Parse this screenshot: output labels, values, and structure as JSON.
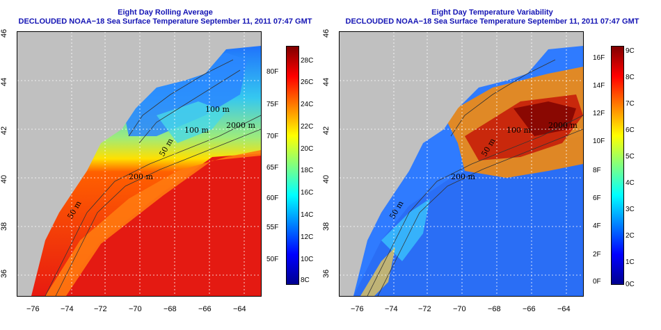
{
  "left_panel": {
    "title": "Eight Day Rolling Average",
    "subtitle": "DECLOUDED NOAA−18 Sea Surface Temperature September 11, 2011 07:47 GMT",
    "x_ticks": [
      "−76",
      "−74",
      "−72",
      "−70",
      "−68",
      "−66",
      "−64"
    ],
    "y_ticks": [
      "46",
      "44",
      "42",
      "40",
      "38",
      "36"
    ],
    "contour_labels": [
      "100 m",
      "100 m",
      "2000 m",
      "200 m",
      "50 m",
      "50 m"
    ],
    "colorbar_celsius": [
      "28C",
      "26C",
      "24C",
      "22C",
      "20C",
      "18C",
      "16C",
      "14C",
      "12C",
      "10C",
      "8C"
    ],
    "colorbar_fahrenheit": [
      "80F",
      "75F",
      "70F",
      "65F",
      "60F",
      "55F",
      "50F"
    ]
  },
  "right_panel": {
    "title": "Eight Day Temperature Variability",
    "subtitle": "DECLOUDED NOAA−18 Sea Surface Temperature September 11, 2011 07:47 GMT",
    "x_ticks": [
      "−76",
      "−74",
      "−72",
      "−70",
      "−68",
      "−66",
      "−64"
    ],
    "y_ticks": [
      "46",
      "44",
      "42",
      "40",
      "38",
      "36"
    ],
    "contour_labels": [
      "100 m",
      "2000 m",
      "200 m",
      "50 m",
      "50 m"
    ],
    "colorbar_fahrenheit": [
      "16F",
      "14F",
      "12F",
      "10F",
      "8F",
      "6F",
      "4F",
      "2F",
      "0F"
    ],
    "colorbar_celsius": [
      "9C",
      "8C",
      "7C",
      "6C",
      "5C",
      "4C",
      "3C",
      "2C",
      "1C",
      "0C"
    ]
  },
  "colors": {
    "land": "#c0c0c0",
    "title": "#1414b4",
    "gradient": [
      "#00008f",
      "#0000ff",
      "#0080ff",
      "#00ffff",
      "#80ff80",
      "#ffff00",
      "#ff8000",
      "#ff0000",
      "#800000"
    ]
  }
}
